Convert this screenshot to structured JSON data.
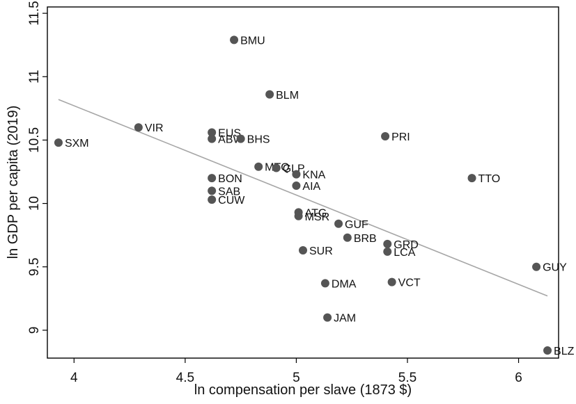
{
  "chart_data": {
    "type": "scatter",
    "title": "",
    "xlabel": "ln compensation per slave (1873 $)",
    "ylabel": "ln GDP per capita (2019)",
    "xlim": [
      3.88,
      6.18
    ],
    "ylim": [
      8.78,
      11.55
    ],
    "xticks": [
      4,
      4.5,
      5,
      5.5,
      6
    ],
    "xtick_labels": [
      "4",
      "4.5",
      "5",
      "5.5",
      "6"
    ],
    "yticks": [
      9,
      9.5,
      10,
      10.5,
      11,
      11.5
    ],
    "ytick_labels": [
      "9",
      "9.5",
      "10",
      "10.5",
      "11",
      "11.5"
    ],
    "grid": false,
    "marker_color": "#555555",
    "fit_line_color": "#a6a6a6",
    "fit_line": {
      "x": [
        3.93,
        6.13
      ],
      "y": [
        10.82,
        9.27
      ]
    },
    "points": [
      {
        "label": "BMU",
        "x": 4.72,
        "y": 11.29
      },
      {
        "label": "BLM",
        "x": 4.88,
        "y": 10.86
      },
      {
        "label": "VIR",
        "x": 4.29,
        "y": 10.6
      },
      {
        "label": "SXM",
        "x": 3.93,
        "y": 10.48
      },
      {
        "label": "EUS",
        "x": 4.62,
        "y": 10.56
      },
      {
        "label": "ABW",
        "x": 4.62,
        "y": 10.51
      },
      {
        "label": "BHS",
        "x": 4.75,
        "y": 10.51
      },
      {
        "label": "PRI",
        "x": 5.4,
        "y": 10.53
      },
      {
        "label": "MTQ",
        "x": 4.83,
        "y": 10.29
      },
      {
        "label": "GLP",
        "x": 4.91,
        "y": 10.28
      },
      {
        "label": "KNA",
        "x": 5.0,
        "y": 10.23
      },
      {
        "label": "AIA",
        "x": 5.0,
        "y": 10.14
      },
      {
        "label": "BON",
        "x": 4.62,
        "y": 10.2
      },
      {
        "label": "SAB",
        "x": 4.62,
        "y": 10.1
      },
      {
        "label": "CUW",
        "x": 4.62,
        "y": 10.03
      },
      {
        "label": "TTO",
        "x": 5.79,
        "y": 10.2
      },
      {
        "label": "ATG",
        "x": 5.01,
        "y": 9.93
      },
      {
        "label": "MSR",
        "x": 5.01,
        "y": 9.9
      },
      {
        "label": "GUF",
        "x": 5.19,
        "y": 9.84
      },
      {
        "label": "BRB",
        "x": 5.23,
        "y": 9.73
      },
      {
        "label": "GRD",
        "x": 5.41,
        "y": 9.68
      },
      {
        "label": "LCA",
        "x": 5.41,
        "y": 9.62
      },
      {
        "label": "SUR",
        "x": 5.03,
        "y": 9.63
      },
      {
        "label": "GUY",
        "x": 6.08,
        "y": 9.5
      },
      {
        "label": "DMA",
        "x": 5.13,
        "y": 9.37
      },
      {
        "label": "VCT",
        "x": 5.43,
        "y": 9.38
      },
      {
        "label": "JAM",
        "x": 5.14,
        "y": 9.1
      },
      {
        "label": "BLZ",
        "x": 6.13,
        "y": 8.84
      }
    ]
  }
}
